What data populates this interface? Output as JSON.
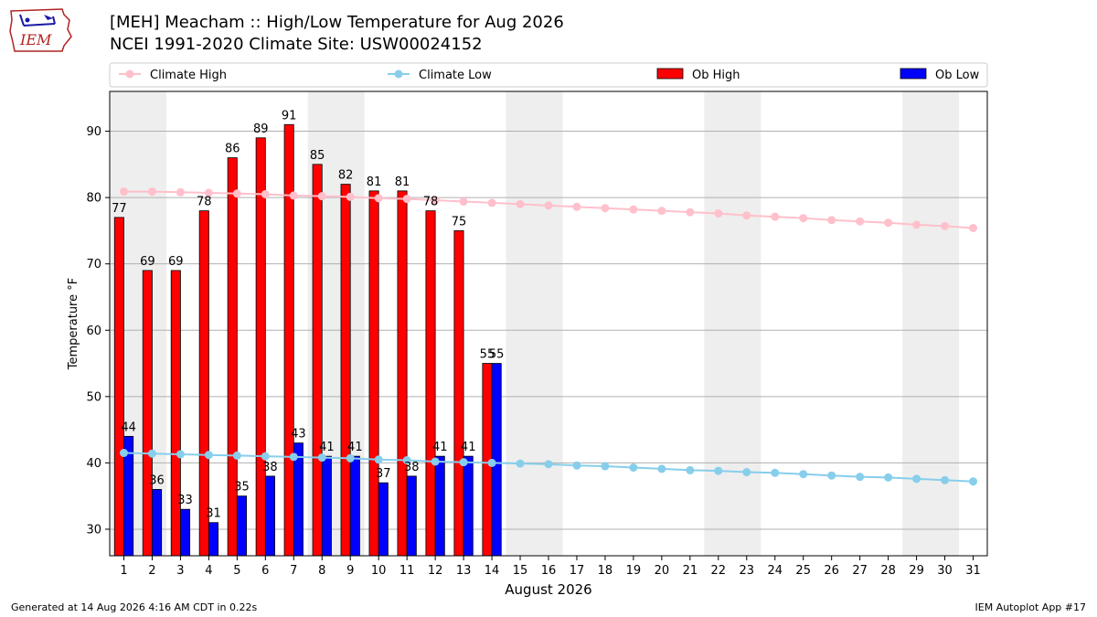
{
  "header": {
    "logo_text": "IEM",
    "title_line1": "[MEH] Meacham :: High/Low Temperature for Aug 2026",
    "title_line2": "NCEI 1991-2020 Climate Site: USW00024152"
  },
  "footer": {
    "generated": "Generated at 14 Aug 2026 4:16 AM CDT in 0.22s",
    "app": "IEM Autoplot App #17"
  },
  "colors": {
    "climate_high": "#ffc0cb",
    "climate_low": "#87ceeb",
    "ob_high": "#ff0000",
    "ob_low": "#0000ff",
    "weekend_shade": "#eeeeee",
    "grid": "#b0b0b0"
  },
  "chart_data": {
    "type": "bar",
    "xlabel": "August 2026",
    "ylabel": "Temperature °F",
    "xlim": [
      0.5,
      31.5
    ],
    "ylim": [
      26,
      96
    ],
    "yticks": [
      30,
      40,
      50,
      60,
      70,
      80,
      90
    ],
    "days": [
      1,
      2,
      3,
      4,
      5,
      6,
      7,
      8,
      9,
      10,
      11,
      12,
      13,
      14,
      15,
      16,
      17,
      18,
      19,
      20,
      21,
      22,
      23,
      24,
      25,
      26,
      27,
      28,
      29,
      30,
      31
    ],
    "weekend_spans": [
      [
        0.5,
        2.5
      ],
      [
        7.5,
        9.5
      ],
      [
        14.5,
        16.5
      ],
      [
        21.5,
        23.5
      ],
      [
        28.5,
        30.5
      ]
    ],
    "grid": true,
    "legend_position": "top",
    "series": [
      {
        "name": "Climate High",
        "kind": "line",
        "values": [
          80.9,
          80.9,
          80.8,
          80.7,
          80.6,
          80.5,
          80.3,
          80.2,
          80.1,
          79.9,
          79.8,
          79.6,
          79.4,
          79.2,
          79.0,
          78.8,
          78.6,
          78.4,
          78.2,
          78.0,
          77.8,
          77.6,
          77.3,
          77.1,
          76.9,
          76.6,
          76.4,
          76.2,
          75.9,
          75.7,
          75.4
        ]
      },
      {
        "name": "Climate Low",
        "kind": "line",
        "values": [
          41.5,
          41.4,
          41.3,
          41.2,
          41.1,
          41.0,
          40.9,
          40.8,
          40.7,
          40.5,
          40.4,
          40.2,
          40.1,
          40.0,
          39.9,
          39.8,
          39.6,
          39.5,
          39.3,
          39.1,
          38.9,
          38.8,
          38.6,
          38.5,
          38.3,
          38.1,
          37.9,
          37.8,
          37.6,
          37.4,
          37.2
        ]
      },
      {
        "name": "Ob High",
        "kind": "bar",
        "values": [
          77,
          69,
          69,
          78,
          86,
          89,
          91,
          85,
          82,
          81,
          81,
          78,
          75,
          55
        ]
      },
      {
        "name": "Ob Low",
        "kind": "bar",
        "values": [
          44,
          36,
          33,
          31,
          35,
          38,
          43,
          41,
          41,
          37,
          38,
          41,
          41,
          55
        ]
      }
    ]
  }
}
